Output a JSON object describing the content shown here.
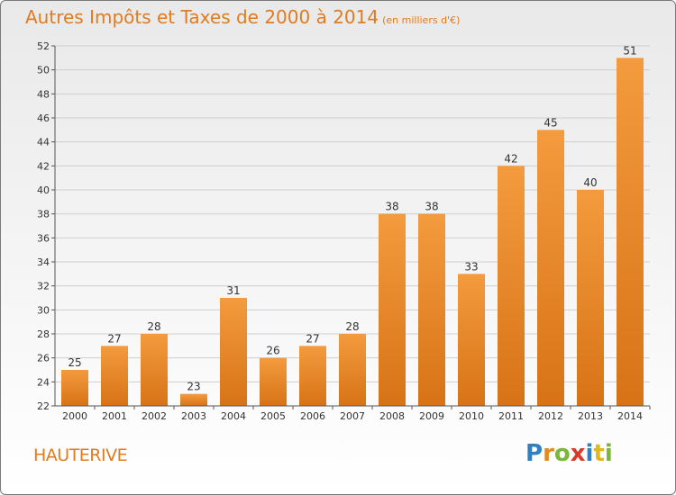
{
  "chart_data": {
    "type": "bar",
    "title": "Autres Impôts et Taxes de 2000 à 2014",
    "subtitle": "(en milliers d'€)",
    "categories": [
      "2000",
      "2001",
      "2002",
      "2003",
      "2004",
      "2005",
      "2006",
      "2007",
      "2008",
      "2009",
      "2010",
      "2011",
      "2012",
      "2013",
      "2014"
    ],
    "values": [
      25,
      27,
      28,
      23,
      31,
      26,
      27,
      28,
      38,
      38,
      33,
      42,
      45,
      40,
      51
    ],
    "ylim": [
      22,
      52
    ],
    "yticks": [
      22,
      24,
      26,
      28,
      30,
      32,
      34,
      36,
      38,
      40,
      42,
      44,
      46,
      48,
      50,
      52
    ],
    "grid": true,
    "bar_color": "#f39b3e",
    "bar_color_dark": "#d77316"
  },
  "location_label": "HAUTERIVE",
  "logo": {
    "letters": [
      "P",
      "r",
      "o",
      "x",
      "i",
      "t",
      "i"
    ],
    "colors": [
      "#2f7fc1",
      "#e08b1e",
      "#7bb63a",
      "#d93a2a",
      "#2f7fc1",
      "#e0b81e",
      "#7bb63a"
    ]
  }
}
